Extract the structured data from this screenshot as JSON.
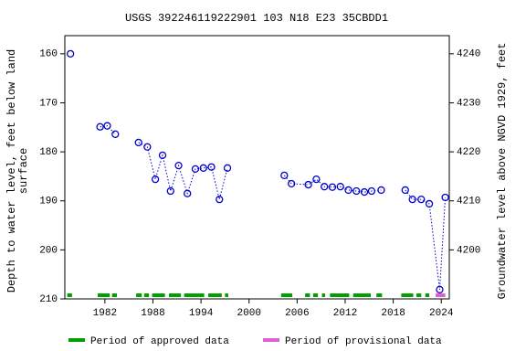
{
  "chart_data": {
    "type": "scatter",
    "title": "USGS 392246119222901 103  N18 E23 35CBDD1",
    "y_label": [
      "Depth to water level, feet below land",
      "surface"
    ],
    "y2_label": "Groundwater level above NGVD 1929, feet",
    "x": [
      1977.7,
      1981.4,
      1982.3,
      1983.3,
      1986.2,
      1987.3,
      1988.3,
      1989.2,
      1990.2,
      1991.2,
      1992.3,
      1993.3,
      1994.3,
      1995.3,
      1996.3,
      1997.3,
      2004.4,
      2005.3,
      2007.4,
      2008.4,
      2009.4,
      2010.4,
      2011.4,
      2012.4,
      2013.4,
      2014.4,
      2015.3,
      2016.5,
      2019.5,
      2020.4,
      2021.5,
      2022.5,
      2023.8,
      2024.5
    ],
    "values": [
      160,
      174.9,
      174.7,
      176.4,
      178.1,
      179.0,
      185.6,
      180.7,
      188.0,
      182.8,
      188.5,
      183.5,
      183.3,
      183.1,
      189.7,
      183.3,
      184.8,
      186.5,
      186.7,
      185.6,
      187.1,
      187.2,
      187.1,
      187.8,
      188.0,
      188.2,
      188.0,
      187.8,
      187.8,
      189.7,
      189.7,
      190.6,
      208.1,
      189.3
    ],
    "color": "#0000cc",
    "xlim": [
      1977,
      2025
    ],
    "xticks": [
      1982,
      1988,
      1994,
      2000,
      2006,
      2012,
      2018,
      2024
    ],
    "ylim": [
      156.3,
      210
    ],
    "invert_y": true,
    "yticks": [
      160,
      170,
      180,
      190,
      200,
      210
    ],
    "y2lim": [
      4190,
      4243.7
    ],
    "y2ticks": [
      4200,
      4210,
      4220,
      4230,
      4240
    ],
    "periods": [
      {
        "name": "Period of approved data",
        "color": "#00a000",
        "ranges": [
          [
            1977.3,
            1977.9
          ],
          [
            1981.1,
            1982.6
          ],
          [
            1982.9,
            1983.5
          ],
          [
            1985.9,
            1986.6
          ],
          [
            1986.9,
            1987.5
          ],
          [
            1987.9,
            1989.5
          ],
          [
            1990.0,
            1991.5
          ],
          [
            1991.9,
            1994.4
          ],
          [
            1994.9,
            1996.6
          ],
          [
            1997.0,
            1997.4
          ],
          [
            2004.0,
            2005.4
          ],
          [
            2007.0,
            2007.6
          ],
          [
            2008.0,
            2008.6
          ],
          [
            2009.1,
            2009.5
          ],
          [
            2010.1,
            2012.5
          ],
          [
            2013.0,
            2015.2
          ],
          [
            2015.9,
            2016.6
          ],
          [
            2019.0,
            2020.5
          ],
          [
            2020.9,
            2021.5
          ],
          [
            2022.0,
            2022.5
          ]
        ]
      },
      {
        "name": "Period of provisional data",
        "color": "#e060d0",
        "ranges": [
          [
            2023.3,
            2024.5
          ]
        ]
      }
    ]
  }
}
